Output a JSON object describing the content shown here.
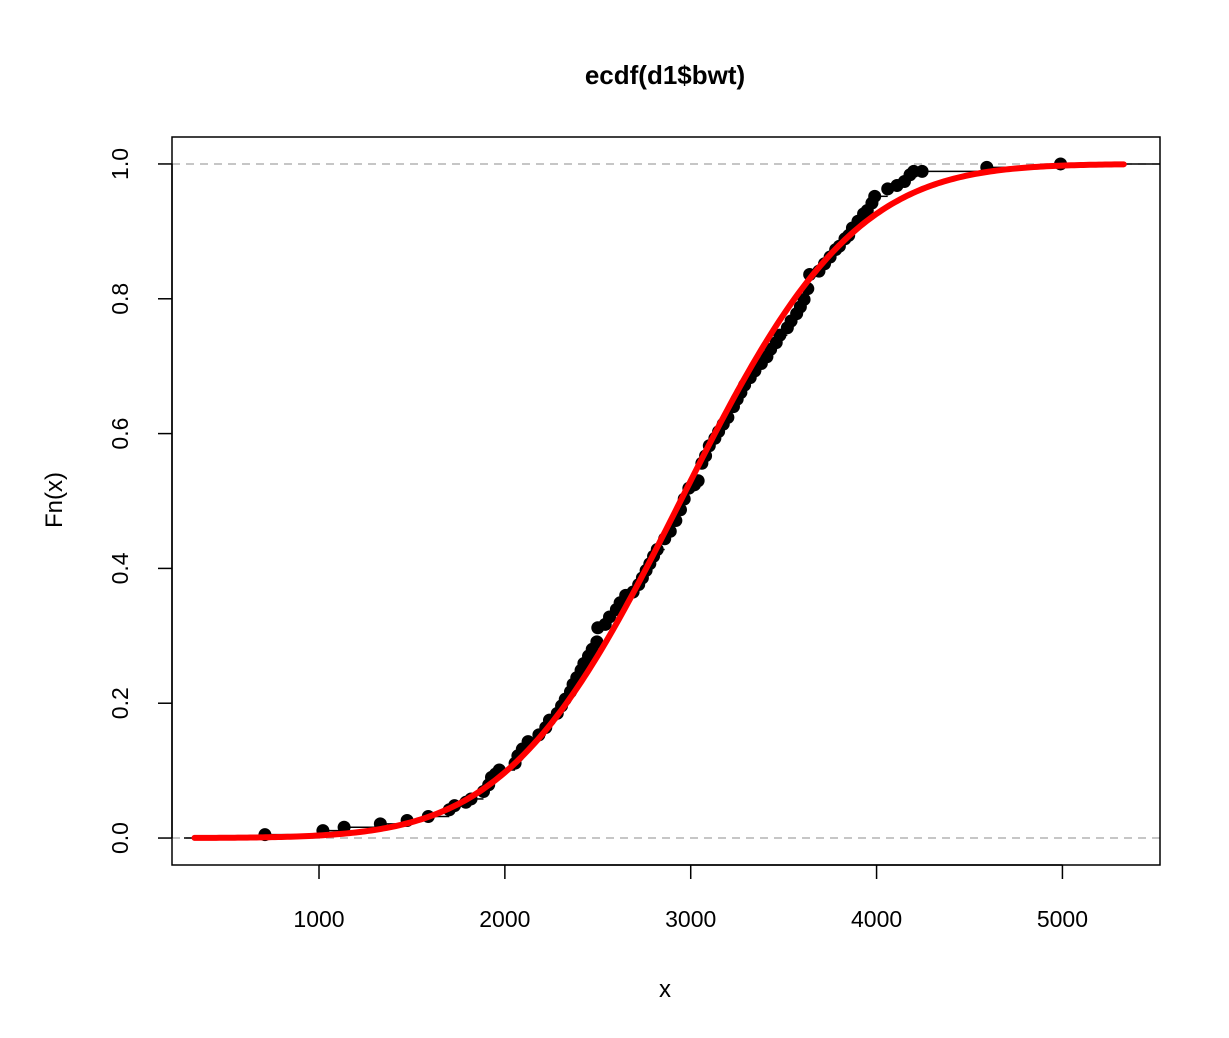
{
  "chart_data": {
    "type": "line",
    "title": "ecdf(d1$bwt)",
    "xlabel": "x",
    "ylabel": "Fn(x)",
    "xlim": [
      209,
      5525
    ],
    "ylim": [
      -0.04,
      1.04
    ],
    "x_ticks": [
      1000,
      2000,
      3000,
      4000,
      5000
    ],
    "y_ticks": [
      0.0,
      0.2,
      0.4,
      0.6,
      0.8,
      1.0
    ],
    "x_tick_labels": [
      "1000",
      "2000",
      "3000",
      "4000",
      "5000"
    ],
    "y_tick_labels": [
      "0.0",
      "0.2",
      "0.4",
      "0.6",
      "0.8",
      "1.0"
    ],
    "reference_lines": [
      0,
      1
    ],
    "reference_line_color": "#b3b3b3",
    "grid": false,
    "legend": "none",
    "series": [
      {
        "kind": "ecdf-steps",
        "color": "#000000",
        "points": [
          [
            709,
            0.005
          ],
          [
            1021,
            0.011
          ],
          [
            1135,
            0.016
          ],
          [
            1330,
            0.021
          ],
          [
            1474,
            0.026
          ],
          [
            1588,
            0.032
          ],
          [
            1701,
            0.042
          ],
          [
            1729,
            0.048
          ],
          [
            1790,
            0.053
          ],
          [
            1818,
            0.058
          ],
          [
            1885,
            0.069
          ],
          [
            1913,
            0.079
          ],
          [
            1928,
            0.09
          ],
          [
            1950,
            0.095
          ],
          [
            1970,
            0.101
          ],
          [
            2055,
            0.111
          ],
          [
            2070,
            0.122
          ],
          [
            2094,
            0.132
          ],
          [
            2125,
            0.143
          ],
          [
            2183,
            0.153
          ],
          [
            2220,
            0.164
          ],
          [
            2240,
            0.175
          ],
          [
            2282,
            0.185
          ],
          [
            2305,
            0.196
          ],
          [
            2325,
            0.206
          ],
          [
            2353,
            0.217
          ],
          [
            2367,
            0.228
          ],
          [
            2387,
            0.238
          ],
          [
            2410,
            0.249
          ],
          [
            2425,
            0.259
          ],
          [
            2450,
            0.27
          ],
          [
            2470,
            0.28
          ],
          [
            2495,
            0.291
          ],
          [
            2500,
            0.312
          ],
          [
            2540,
            0.317
          ],
          [
            2563,
            0.328
          ],
          [
            2600,
            0.339
          ],
          [
            2620,
            0.349
          ],
          [
            2650,
            0.36
          ],
          [
            2690,
            0.365
          ],
          [
            2720,
            0.376
          ],
          [
            2740,
            0.386
          ],
          [
            2760,
            0.397
          ],
          [
            2780,
            0.407
          ],
          [
            2800,
            0.418
          ],
          [
            2820,
            0.428
          ],
          [
            2860,
            0.444
          ],
          [
            2890,
            0.455
          ],
          [
            2920,
            0.471
          ],
          [
            2945,
            0.487
          ],
          [
            2965,
            0.503
          ],
          [
            2990,
            0.519
          ],
          [
            3020,
            0.524
          ],
          [
            3040,
            0.53
          ],
          [
            3060,
            0.556
          ],
          [
            3080,
            0.567
          ],
          [
            3100,
            0.582
          ],
          [
            3130,
            0.593
          ],
          [
            3150,
            0.603
          ],
          [
            3175,
            0.614
          ],
          [
            3200,
            0.624
          ],
          [
            3230,
            0.64
          ],
          [
            3250,
            0.651
          ],
          [
            3270,
            0.661
          ],
          [
            3290,
            0.672
          ],
          [
            3320,
            0.683
          ],
          [
            3345,
            0.693
          ],
          [
            3380,
            0.704
          ],
          [
            3410,
            0.714
          ],
          [
            3430,
            0.725
          ],
          [
            3460,
            0.735
          ],
          [
            3480,
            0.746
          ],
          [
            3520,
            0.757
          ],
          [
            3540,
            0.767
          ],
          [
            3570,
            0.778
          ],
          [
            3590,
            0.788
          ],
          [
            3610,
            0.799
          ],
          [
            3630,
            0.815
          ],
          [
            3640,
            0.836
          ],
          [
            3690,
            0.841
          ],
          [
            3720,
            0.852
          ],
          [
            3750,
            0.862
          ],
          [
            3780,
            0.873
          ],
          [
            3800,
            0.878
          ],
          [
            3830,
            0.889
          ],
          [
            3850,
            0.894
          ],
          [
            3870,
            0.905
          ],
          [
            3900,
            0.915
          ],
          [
            3930,
            0.926
          ],
          [
            3950,
            0.931
          ],
          [
            3975,
            0.942
          ],
          [
            3990,
            0.952
          ],
          [
            4060,
            0.963
          ],
          [
            4110,
            0.968
          ],
          [
            4150,
            0.974
          ],
          [
            4180,
            0.984
          ],
          [
            4200,
            0.989
          ],
          [
            4245,
            0.989
          ],
          [
            4593,
            0.995
          ],
          [
            4990,
            1.0
          ]
        ]
      },
      {
        "kind": "normal-cdf-fit",
        "color": "#ff0000",
        "mean": 2945,
        "sd": 729,
        "x_range": [
          330,
          5330
        ]
      }
    ]
  }
}
